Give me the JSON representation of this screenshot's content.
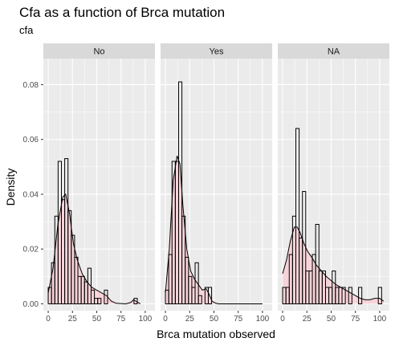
{
  "chart_data": {
    "type": "histogram",
    "title": "Cfa as a function of Brca mutation",
    "subtitle": "cfa",
    "xlabel": "Brca mutation observed",
    "ylabel": "Density",
    "xlim": [
      -5,
      110
    ],
    "ylim": [
      -0.0025,
      0.0895
    ],
    "x_ticks": [
      0,
      25,
      50,
      75,
      100
    ],
    "y_ticks": [
      0.0,
      0.02,
      0.04,
      0.06,
      0.08
    ],
    "y_tick_labels": [
      "0.00",
      "0.02",
      "0.04",
      "0.06",
      "0.08"
    ],
    "grid": true,
    "bin_width": 3.4,
    "colors": {
      "panel_bg": "#ebebeb",
      "strip_bg": "#d9d9d9",
      "grid": "#ffffff",
      "density_fill": "#ffc0cb",
      "density_line": "#000000",
      "bar_stroke": "#000000"
    },
    "panels": [
      {
        "label": "No",
        "bins": [
          {
            "x0": 0.0,
            "x1": 3.4,
            "density": 0.006
          },
          {
            "x0": 3.4,
            "x1": 6.8,
            "density": 0.015
          },
          {
            "x0": 6.8,
            "x1": 10.2,
            "density": 0.032
          },
          {
            "x0": 10.2,
            "x1": 13.6,
            "density": 0.052
          },
          {
            "x0": 13.6,
            "x1": 17.0,
            "density": 0.038
          },
          {
            "x0": 17.0,
            "x1": 20.4,
            "density": 0.053
          },
          {
            "x0": 20.4,
            "x1": 23.8,
            "density": 0.034
          },
          {
            "x0": 23.8,
            "x1": 27.2,
            "density": 0.025
          },
          {
            "x0": 27.2,
            "x1": 30.6,
            "density": 0.017
          },
          {
            "x0": 30.6,
            "x1": 34.0,
            "density": 0.01
          },
          {
            "x0": 34.0,
            "x1": 37.4,
            "density": 0.01
          },
          {
            "x0": 37.4,
            "x1": 40.8,
            "density": 0.008
          },
          {
            "x0": 40.8,
            "x1": 44.2,
            "density": 0.013
          },
          {
            "x0": 44.2,
            "x1": 47.6,
            "density": 0.005
          },
          {
            "x0": 47.6,
            "x1": 51.0,
            "density": 0.002
          },
          {
            "x0": 51.0,
            "x1": 54.4,
            "density": 0.002
          },
          {
            "x0": 57.8,
            "x1": 61.2,
            "density": 0.005
          },
          {
            "x0": 88.4,
            "x1": 91.8,
            "density": 0.002
          }
        ],
        "density_curve": {
          "x": [
            0,
            5,
            10,
            15,
            18,
            22,
            26,
            30,
            35,
            40,
            45,
            50,
            55,
            60,
            65,
            70,
            80,
            85,
            88,
            91,
            95
          ],
          "y": [
            0.004,
            0.013,
            0.029,
            0.039,
            0.04,
            0.033,
            0.022,
            0.016,
            0.011,
            0.008,
            0.006,
            0.005,
            0.004,
            0.003,
            0.001,
            0.0002,
            0.0,
            0.0005,
            0.0015,
            0.0008,
            0.0
          ]
        }
      },
      {
        "label": "Yes",
        "bins": [
          {
            "x0": 0.0,
            "x1": 3.4,
            "density": 0.005
          },
          {
            "x0": 3.4,
            "x1": 6.8,
            "density": 0.018
          },
          {
            "x0": 6.8,
            "x1": 10.2,
            "density": 0.052
          },
          {
            "x0": 10.2,
            "x1": 13.6,
            "density": 0.052
          },
          {
            "x0": 13.6,
            "x1": 17.0,
            "density": 0.081
          },
          {
            "x0": 17.0,
            "x1": 20.4,
            "density": 0.032
          },
          {
            "x0": 20.4,
            "x1": 23.8,
            "density": 0.017
          },
          {
            "x0": 23.8,
            "x1": 27.2,
            "density": 0.01
          },
          {
            "x0": 27.2,
            "x1": 30.6,
            "density": 0.006
          },
          {
            "x0": 30.6,
            "x1": 34.0,
            "density": 0.015
          },
          {
            "x0": 34.0,
            "x1": 37.4,
            "density": 0.003
          },
          {
            "x0": 40.8,
            "x1": 44.2,
            "density": 0.006
          },
          {
            "x0": 44.2,
            "x1": 47.6,
            "density": 0.006
          }
        ],
        "density_curve": {
          "x": [
            0,
            4,
            8,
            12,
            15,
            18,
            22,
            26,
            30,
            34,
            38,
            42,
            45,
            48,
            52,
            55,
            60,
            100
          ],
          "y": [
            0.004,
            0.02,
            0.045,
            0.054,
            0.051,
            0.036,
            0.02,
            0.012,
            0.009,
            0.007,
            0.005,
            0.0055,
            0.0035,
            0.001,
            0.0002,
            0.0,
            0.0,
            0.0
          ]
        }
      },
      {
        "label": "NA",
        "bins": [
          {
            "x0": 0.0,
            "x1": 3.4,
            "density": 0.006
          },
          {
            "x0": 3.4,
            "x1": 6.8,
            "density": 0.006
          },
          {
            "x0": 6.8,
            "x1": 10.2,
            "density": 0.018
          },
          {
            "x0": 10.2,
            "x1": 13.6,
            "density": 0.032
          },
          {
            "x0": 13.6,
            "x1": 17.0,
            "density": 0.064
          },
          {
            "x0": 17.0,
            "x1": 20.4,
            "density": 0.024
          },
          {
            "x0": 20.4,
            "x1": 23.8,
            "density": 0.041
          },
          {
            "x0": 23.8,
            "x1": 27.2,
            "density": 0.012
          },
          {
            "x0": 27.2,
            "x1": 30.6,
            "density": 0.012
          },
          {
            "x0": 30.6,
            "x1": 34.0,
            "density": 0.018
          },
          {
            "x0": 34.0,
            "x1": 37.4,
            "density": 0.029
          },
          {
            "x0": 37.4,
            "x1": 40.8,
            "density": 0.012
          },
          {
            "x0": 40.8,
            "x1": 44.2,
            "density": 0.012
          },
          {
            "x0": 44.2,
            "x1": 47.6,
            "density": 0.006
          },
          {
            "x0": 47.6,
            "x1": 51.0,
            "density": 0.006
          },
          {
            "x0": 51.0,
            "x1": 54.4,
            "density": 0.012
          },
          {
            "x0": 54.4,
            "x1": 57.8,
            "density": 0.006
          },
          {
            "x0": 57.8,
            "x1": 61.2,
            "density": 0.006
          },
          {
            "x0": 61.2,
            "x1": 64.6,
            "density": 0.006
          },
          {
            "x0": 68.0,
            "x1": 71.4,
            "density": 0.006
          },
          {
            "x0": 78.2,
            "x1": 81.6,
            "density": 0.006
          },
          {
            "x0": 98.6,
            "x1": 102.0,
            "density": 0.006
          }
        ],
        "density_curve": {
          "x": [
            0,
            4,
            8,
            12,
            15,
            18,
            22,
            26,
            30,
            35,
            40,
            45,
            50,
            55,
            60,
            65,
            70,
            75,
            80,
            85,
            90,
            95,
            100,
            104
          ],
          "y": [
            0.011,
            0.016,
            0.023,
            0.028,
            0.028,
            0.026,
            0.022,
            0.019,
            0.017,
            0.014,
            0.012,
            0.01,
            0.0085,
            0.007,
            0.006,
            0.005,
            0.004,
            0.003,
            0.002,
            0.0015,
            0.0015,
            0.002,
            0.002,
            0.001
          ]
        }
      }
    ]
  }
}
